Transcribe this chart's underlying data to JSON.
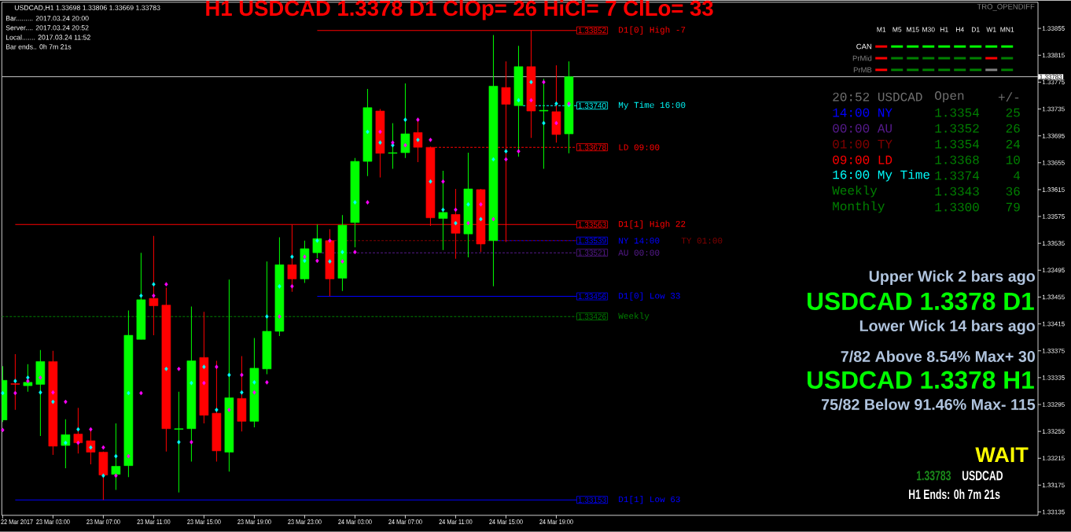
{
  "chart_data": [
    {
      "type": "candlestick",
      "title": "H1 USDCAD 1.3378  D1 ClOp= 26 HiCl= 7 ClLo= 33",
      "annotations": [
        "USDCAD,H1  1.33698 1.33806 1.33669 1.33783",
        "Bar......... 2017.03.24 20:00",
        "Server.... 2017.03.24 20:52",
        "Local....... 2017.03.24 11:52",
        "Bar ends.. 0h 7m 21s"
      ],
      "x": [
        "2017-03-22T23:00",
        "2017-03-23T00:00",
        "2017-03-23T01:00",
        "2017-03-23T02:00",
        "2017-03-23T03:00",
        "2017-03-23T04:00",
        "2017-03-23T05:00",
        "2017-03-23T06:00",
        "2017-03-23T07:00",
        "2017-03-23T08:00",
        "2017-03-23T09:00",
        "2017-03-23T10:00",
        "2017-03-23T11:00",
        "2017-03-23T12:00",
        "2017-03-23T13:00",
        "2017-03-23T14:00",
        "2017-03-23T15:00",
        "2017-03-23T16:00",
        "2017-03-23T17:00",
        "2017-03-23T18:00",
        "2017-03-23T19:00",
        "2017-03-23T20:00",
        "2017-03-23T21:00",
        "2017-03-23T22:00",
        "2017-03-23T23:00",
        "2017-03-24T00:00",
        "2017-03-24T01:00",
        "2017-03-24T02:00",
        "2017-03-24T03:00",
        "2017-03-24T04:00",
        "2017-03-24T05:00",
        "2017-03-24T06:00",
        "2017-03-24T07:00",
        "2017-03-24T08:00",
        "2017-03-24T09:00",
        "2017-03-24T10:00",
        "2017-03-24T11:00",
        "2017-03-24T12:00",
        "2017-03-24T13:00",
        "2017-03-24T14:00",
        "2017-03-24T15:00",
        "2017-03-24T16:00",
        "2017-03-24T17:00",
        "2017-03-24T18:00",
        "2017-03-24T19:00",
        "2017-03-24T20:00"
      ],
      "ohlc": [
        [
          1.33272,
          1.33352,
          1.33269,
          1.33331
        ],
        [
          1.33326,
          1.3337,
          1.33287,
          1.33325
        ],
        [
          1.33323,
          1.33355,
          1.33314,
          1.33328
        ],
        [
          1.33325,
          1.33376,
          1.33248,
          1.33359
        ],
        [
          1.33359,
          1.33375,
          1.3322,
          1.33233
        ],
        [
          1.33234,
          1.33273,
          1.332,
          1.3325
        ],
        [
          1.33251,
          1.3329,
          1.33222,
          1.33238
        ],
        [
          1.33241,
          1.33258,
          1.33206,
          1.33224
        ],
        [
          1.33224,
          1.33225,
          1.33153,
          1.3319
        ],
        [
          1.33191,
          1.33267,
          1.33168,
          1.33203
        ],
        [
          1.33204,
          1.33435,
          1.33187,
          1.33398
        ],
        [
          1.33392,
          1.33521,
          1.33392,
          1.33451
        ],
        [
          1.33453,
          1.33546,
          1.33398,
          1.33442
        ],
        [
          1.33443,
          1.33469,
          1.33225,
          1.33259
        ],
        [
          1.33258,
          1.33314,
          1.33164,
          1.33259
        ],
        [
          1.33259,
          1.33441,
          1.3321,
          1.3336
        ],
        [
          1.33365,
          1.33433,
          1.33267,
          1.33279
        ],
        [
          1.33282,
          1.3336,
          1.3321,
          1.33226
        ],
        [
          1.33224,
          1.33481,
          1.33195,
          1.33305
        ],
        [
          1.33304,
          1.33367,
          1.33255,
          1.3327
        ],
        [
          1.3327,
          1.33394,
          1.33261,
          1.33349
        ],
        [
          1.33348,
          1.33508,
          1.3334,
          1.33404
        ],
        [
          1.33404,
          1.33544,
          1.33397,
          1.33503
        ],
        [
          1.33503,
          1.33563,
          1.33463,
          1.33482
        ],
        [
          1.33482,
          1.33539,
          1.33476,
          1.33527
        ],
        [
          1.33521,
          1.33563,
          1.33513,
          1.33542
        ],
        [
          1.33539,
          1.33556,
          1.33456,
          1.33482
        ],
        [
          1.33483,
          1.33577,
          1.33464,
          1.33562
        ],
        [
          1.33566,
          1.33662,
          1.33529,
          1.33657
        ],
        [
          1.33657,
          1.33765,
          1.33635,
          1.33737
        ],
        [
          1.33732,
          1.33735,
          1.33633,
          1.33669
        ],
        [
          1.33669,
          1.33714,
          1.33646,
          1.3367
        ],
        [
          1.3367,
          1.33773,
          1.33662,
          1.33698
        ],
        [
          1.337,
          1.33719,
          1.33656,
          1.33678
        ],
        [
          1.33678,
          1.33679,
          1.33561,
          1.33573
        ],
        [
          1.33572,
          1.33643,
          1.33525,
          1.33581
        ],
        [
          1.33578,
          1.33616,
          1.33512,
          1.3355
        ],
        [
          1.33549,
          1.3367,
          1.33514,
          1.33616
        ],
        [
          1.33615,
          1.33616,
          1.33522,
          1.33534
        ],
        [
          1.33539,
          1.33845,
          1.33471,
          1.33769
        ],
        [
          1.33767,
          1.33806,
          1.33537,
          1.33742
        ],
        [
          1.3374,
          1.33829,
          1.33664,
          1.33798
        ],
        [
          1.33798,
          1.33852,
          1.33692,
          1.33732
        ],
        [
          1.33732,
          1.3378,
          1.33646,
          1.33733
        ],
        [
          1.33731,
          1.338,
          1.33685,
          1.33697
        ],
        [
          1.33698,
          1.33806,
          1.33669,
          1.33783
        ]
      ],
      "colors": [
        "#00ff00",
        "#ff0000",
        "#00ff00",
        "#00ff00",
        "#ff0000",
        "#00ff00",
        "#ff0000",
        "#ff0000",
        "#ff0000",
        "#00ff00",
        "#00ff00",
        "#00ff00",
        "#ff0000",
        "#ff0000",
        "#00ff00",
        "#00ff00",
        "#ff0000",
        "#ff0000",
        "#00ff00",
        "#ff0000",
        "#00ff00",
        "#00ff00",
        "#00ff00",
        "#ff0000",
        "#00ff00",
        "#00ff00",
        "#ff0000",
        "#00ff00",
        "#00ff00",
        "#00ff00",
        "#ff0000",
        "#00ff00",
        "#00ff00",
        "#ff0000",
        "#ff0000",
        "#00ff00",
        "#ff0000",
        "#00ff00",
        "#ff0000",
        "#00ff00",
        "#ff0000",
        "#00ff00",
        "#ff0000",
        "#00ff00",
        "#ff0000",
        "#00ff00"
      ],
      "series": [
        {
          "type": "scatter",
          "color": "#00ffff",
          "marker": "diamond",
          "values": [
            1.33312,
            1.3333,
            1.33335,
            1.33313,
            1.33299,
            1.33238,
            1.33258,
            1.33231,
            1.33189,
            1.33218,
            1.33312,
            1.33457,
            1.33474,
            1.33348,
            1.33239,
            1.33327,
            1.33351,
            1.33287,
            1.33339,
            1.33313,
            1.33328,
            1.33426,
            1.33471,
            1.33515,
            1.33509,
            1.33539,
            1.33508,
            1.33522,
            1.33596,
            1.33701,
            1.33685,
            1.33681,
            1.33719,
            1.33689,
            1.33627,
            1.33585,
            1.33565,
            1.33593,
            1.33571,
            1.3366,
            1.33672,
            1.33748,
            1.33775,
            1.33714,
            1.33743,
            1.33741
          ]
        },
        {
          "type": "scatter",
          "color": "#ff00ff",
          "marker": "diamond",
          "values": [
            1.33257,
            1.33312,
            1.3333,
            1.33335,
            1.33313,
            1.33299,
            1.33238,
            1.33258,
            1.33231,
            1.33189,
            1.33218,
            1.33312,
            1.33457,
            1.33474,
            1.33348,
            1.33239,
            1.33327,
            1.33351,
            1.33287,
            1.33339,
            1.33313,
            1.33328,
            1.33426,
            1.33471,
            1.33515,
            1.33509,
            1.33539,
            1.33508,
            1.33522,
            1.33596,
            1.33701,
            1.33685,
            1.33681,
            1.33719,
            1.33689,
            1.33627,
            1.33585,
            1.33565,
            1.33593,
            1.33571,
            1.3366,
            1.33672,
            1.33748,
            1.33775,
            1.33714,
            1.33743
          ]
        },
        {
          "type": "line",
          "name": "D1[0] High  -7",
          "color": "#ff0000",
          "line_style": "solid",
          "x": [
            "2017-03-24T00:00",
            "2017-03-24T20:36"
          ],
          "values": [
            1.33852,
            1.33852
          ],
          "value_labels": [
            null,
            "1.33852"
          ]
        },
        {
          "type": "line",
          "name": "My Time 16:00",
          "color": "#00ffff",
          "line_style": "dashed",
          "x": [
            "2017-03-24T16:21",
            "2017-03-24T20:36"
          ],
          "values": [
            1.3374,
            1.3374
          ],
          "value_labels": [
            null,
            "1.33740"
          ]
        },
        {
          "type": "line",
          "name": "LD 09:00",
          "color": "#ff0000",
          "line_style": "dashed",
          "x": [
            "2017-03-24T09:21",
            "2017-03-24T20:36"
          ],
          "values": [
            1.33678,
            1.33678
          ],
          "value_labels": [
            null,
            "1.33678"
          ]
        },
        {
          "type": "line",
          "name": "D1[1] High  22",
          "color": "#ff0000",
          "line_style": "solid",
          "x": [
            "2017-03-23T00:00",
            "2017-03-24T20:36"
          ],
          "values": [
            1.33563,
            1.33563
          ],
          "value_labels": [
            null,
            "1.33563"
          ]
        },
        {
          "type": "line",
          "name": "NY 14:00",
          "color": "#0000ff",
          "line_style": "dashed",
          "x": [
            "2017-03-24T14:21",
            "2017-03-24T20:36"
          ],
          "values": [
            1.33539,
            1.33539
          ],
          "value_labels": [
            null,
            "1.33539"
          ]
        },
        {
          "type": "line",
          "name": "TY 01:00",
          "color": "#800000",
          "line_style": "dashed",
          "x": [
            "2017-03-24T01:21",
            "2017-03-24T20:36"
          ],
          "values": [
            1.33539,
            1.33539
          ]
        },
        {
          "type": "line",
          "name": "AU 00:00",
          "color": "#551a8b",
          "line_style": "dashed",
          "x": [
            "2017-03-24T00:21",
            "2017-03-24T20:36"
          ],
          "values": [
            1.33521,
            1.33521
          ],
          "value_labels": [
            null,
            "1.33521"
          ]
        },
        {
          "type": "line",
          "name": "D1[0] Low  33",
          "color": "#0000ff",
          "line_style": "solid",
          "x": [
            "2017-03-24T00:00",
            "2017-03-24T20:36"
          ],
          "values": [
            1.33456,
            1.33456
          ],
          "value_labels": [
            null,
            "1.33456"
          ]
        },
        {
          "type": "line",
          "name": "Weekly",
          "color": "#008000",
          "line_style": "dashed",
          "x": [
            "2017-03-22T22:56",
            "2017-03-24T20:36"
          ],
          "values": [
            1.33426,
            1.33426
          ],
          "value_labels": [
            null,
            "1.33426"
          ]
        },
        {
          "type": "line",
          "name": "D1[1] Low  63",
          "color": "#0000ff",
          "line_style": "solid",
          "x": [
            "2017-03-23T00:00",
            "2017-03-24T20:36"
          ],
          "values": [
            1.33153,
            1.33153
          ],
          "value_labels": [
            null,
            "1.33153"
          ]
        }
      ],
      "legend": "right",
      "xlim": [
        "2017-03-22T22:56",
        "2017-03-26T09:17"
      ],
      "xticks": [
        {
          "value": "2017-03-22T23:00",
          "label": "22 Mar 2017"
        },
        {
          "value": "2017-03-23T03:00",
          "label": "23 Mar 03:00"
        },
        {
          "value": "2017-03-23T07:00",
          "label": "23 Mar 07:00"
        },
        {
          "value": "2017-03-23T11:00",
          "label": "23 Mar 11:00"
        },
        {
          "value": "2017-03-23T15:00",
          "label": "23 Mar 15:00"
        },
        {
          "value": "2017-03-23T19:00",
          "label": "23 Mar 19:00"
        },
        {
          "value": "2017-03-23T23:00",
          "label": "23 Mar 23:00"
        },
        {
          "value": "2017-03-24T03:00",
          "label": "24 Mar 03:00"
        },
        {
          "value": "2017-03-24T07:00",
          "label": "24 Mar 07:00"
        },
        {
          "value": "2017-03-24T11:00",
          "label": "24 Mar 11:00"
        },
        {
          "value": "2017-03-24T15:00",
          "label": "24 Mar 15:00"
        },
        {
          "value": "2017-03-24T19:00",
          "label": "24 Mar 19:00"
        }
      ],
      "ylim": [
        1.3313,
        1.33894
      ],
      "yticks": [
        1.33135,
        1.33175,
        1.33215,
        1.33255,
        1.33295,
        1.33335,
        1.33375,
        1.33415,
        1.33455,
        1.33495,
        1.33535,
        1.33575,
        1.33615,
        1.33655,
        1.33695,
        1.33735,
        1.33775,
        1.33815,
        1.33855
      ],
      "ref_lines": [
        {
          "axis": "y",
          "value": 1.33783,
          "label": "1.33783",
          "color": "#c0c0c0"
        }
      ]
    },
    {
      "type": "other",
      "title": "TRO_OPENDIFF",
      "categories": [
        "M1",
        "M5",
        "M15",
        "M30",
        "H1",
        "H4",
        "D1",
        "W1",
        "MN1"
      ],
      "y_categories": [
        "CAN",
        "PrMid",
        "PrMB"
      ],
      "colors": [
        "#ff0000",
        "#00ff00",
        "#00ff00",
        "#00ff00",
        "#00ff00",
        "#00ff00",
        "#00ff00",
        "#00ff00",
        "#00ff00",
        "#ff0000",
        "#008000",
        "#008000",
        "#008000",
        "#008000",
        "#008000",
        "#008000",
        "#ff0000",
        "#008000",
        "#ff0000",
        "#008000",
        "#008000",
        "#008000",
        "#008000",
        "#008000",
        "#008000",
        "#808080",
        "#008000"
      ]
    },
    {
      "type": "other",
      "annotations": [
        "20:52 USDCAD",
        "Open",
        "+/-",
        "14:00 NY",
        "1.3354",
        "25",
        "00:00 AU",
        "1.3352",
        "26",
        "01:00 TY",
        "1.3354",
        "24",
        "09:00 LD",
        "1.3368",
        "10",
        "16:00 My Time",
        "1.3374",
        "4",
        "Weekly",
        "1.3343",
        "36",
        "Monthly",
        "1.3300",
        "79"
      ],
      "colors": [
        "#707070",
        "#707070",
        "#707070",
        "#0000ff",
        "#008000",
        "#008000",
        "#551a8b",
        "#008000",
        "#008000",
        "#800000",
        "#008000",
        "#008000",
        "#ff0000",
        "#008000",
        "#008000",
        "#00ffff",
        "#008000",
        "#008000",
        "#008000",
        "#008000",
        "#008000",
        "#008000",
        "#008000",
        "#008000"
      ]
    },
    {
      "type": "other",
      "annotations": [
        "Upper Wick 2 bars ago",
        "USDCAD 1.3378 D1",
        "Lower Wick 14 bars ago",
        "7/82 Above 8.54% Max+ 30",
        "USDCAD 1.3378 H1",
        "75/82 Below 91.46% Max- 115",
        "WAIT",
        "1.33783",
        "USDCAD",
        "H1 Ends: 0h 7m 21s"
      ],
      "colors": [
        "#b0c4de",
        "#00ff00",
        "#b0c4de",
        "#b0c4de",
        "#00ff00",
        "#b0c4de",
        "#ffff00",
        "#1a8a1a",
        "#ffffff",
        "#ffffff"
      ]
    }
  ]
}
